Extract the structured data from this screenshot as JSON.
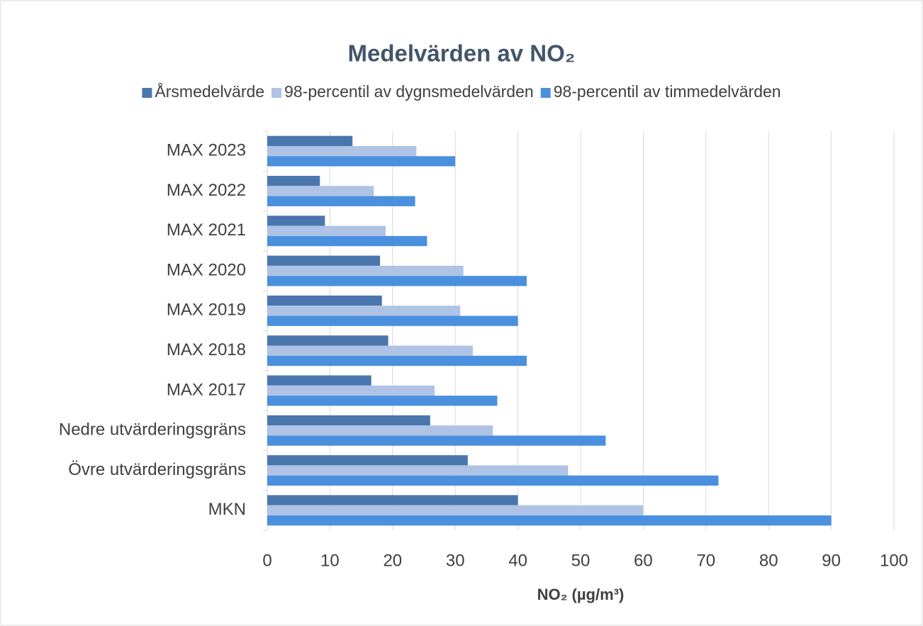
{
  "chart_data": {
    "type": "barh",
    "title": "Medelvärden av NO₂",
    "xlabel": "NO₂ (µg/m³)",
    "categories": [
      "MAX 2023",
      "MAX 2022",
      "MAX 2021",
      "MAX 2020",
      "MAX 2019",
      "MAX 2018",
      "MAX 2017",
      "Nedre utvärderingsgräns",
      "Övre utvärderingsgräns",
      "MKN"
    ],
    "series": [
      {
        "name": "Årsmedelvärde",
        "color": "#4a76ae",
        "values": [
          13.6,
          8.4,
          9.2,
          18.0,
          18.3,
          19.3,
          16.6,
          26,
          32,
          40
        ]
      },
      {
        "name": "98-percentil av dygnsmedelvärden",
        "color": "#aec3e6",
        "values": [
          23.8,
          17.0,
          18.9,
          31.3,
          30.8,
          32.8,
          26.7,
          36,
          48,
          60
        ]
      },
      {
        "name": "98-percentil av timmedelvärden",
        "color": "#4a90de",
        "values": [
          30.0,
          23.6,
          25.5,
          41.4,
          40.0,
          41.4,
          36.7,
          54,
          72,
          90
        ]
      }
    ],
    "xlim": [
      0,
      100
    ],
    "xticks": [
      0,
      10,
      20,
      30,
      40,
      50,
      60,
      70,
      80,
      90,
      100
    ],
    "grid": true,
    "legend": "top"
  }
}
